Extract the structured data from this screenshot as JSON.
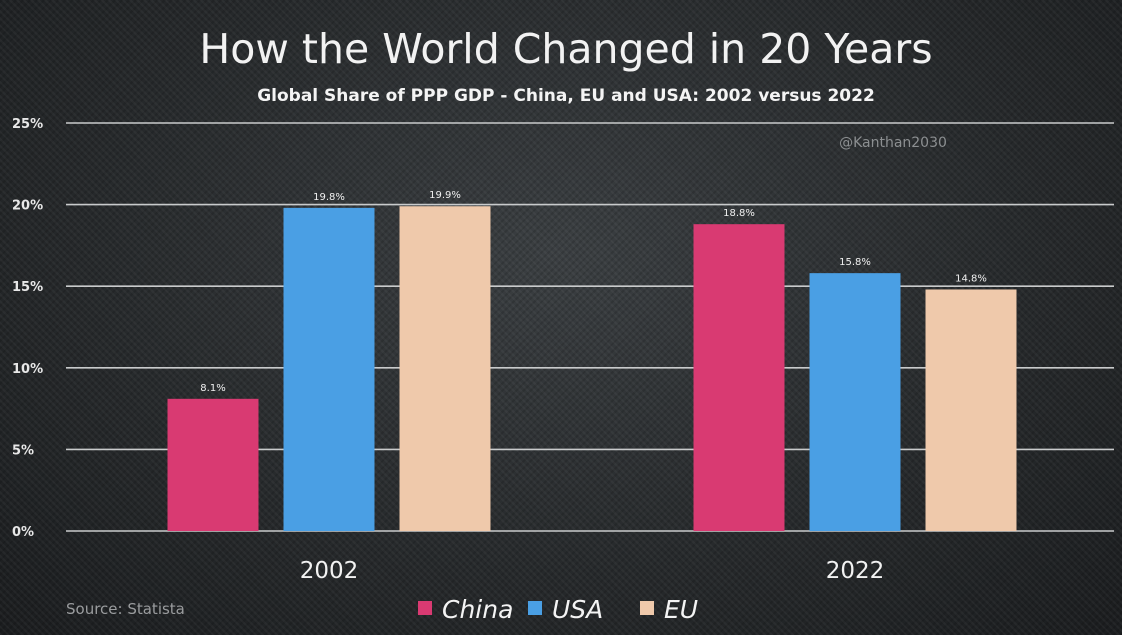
{
  "chart_data": {
    "type": "bar",
    "title": "How the World Changed in 20 Years",
    "subtitle": "Global Share of PPP GDP - China, EU and USA: 2002 versus 2022",
    "categories": [
      "2002",
      "2022"
    ],
    "series": [
      {
        "name": "China",
        "color": "#d93a72",
        "values": [
          8.1,
          18.8
        ],
        "labels": [
          "8.1%",
          "18.8%"
        ]
      },
      {
        "name": "USA",
        "color": "#4a9fe4",
        "values": [
          19.8,
          15.8
        ],
        "labels": [
          "19.8%",
          "15.8%"
        ]
      },
      {
        "name": "EU",
        "color": "#efc9ab",
        "values": [
          19.9,
          14.8
        ],
        "labels": [
          "19.9%",
          "14.8%"
        ]
      }
    ],
    "ylim": [
      0,
      25
    ],
    "yticks": [
      0,
      5,
      10,
      15,
      20,
      25
    ],
    "ytick_labels": [
      "0%",
      "5%",
      "10%",
      "15%",
      "20%",
      "25%"
    ],
    "grid": true,
    "legend_position": "bottom-center",
    "watermark": "@Kanthan2030",
    "source": "Source: Statista"
  }
}
